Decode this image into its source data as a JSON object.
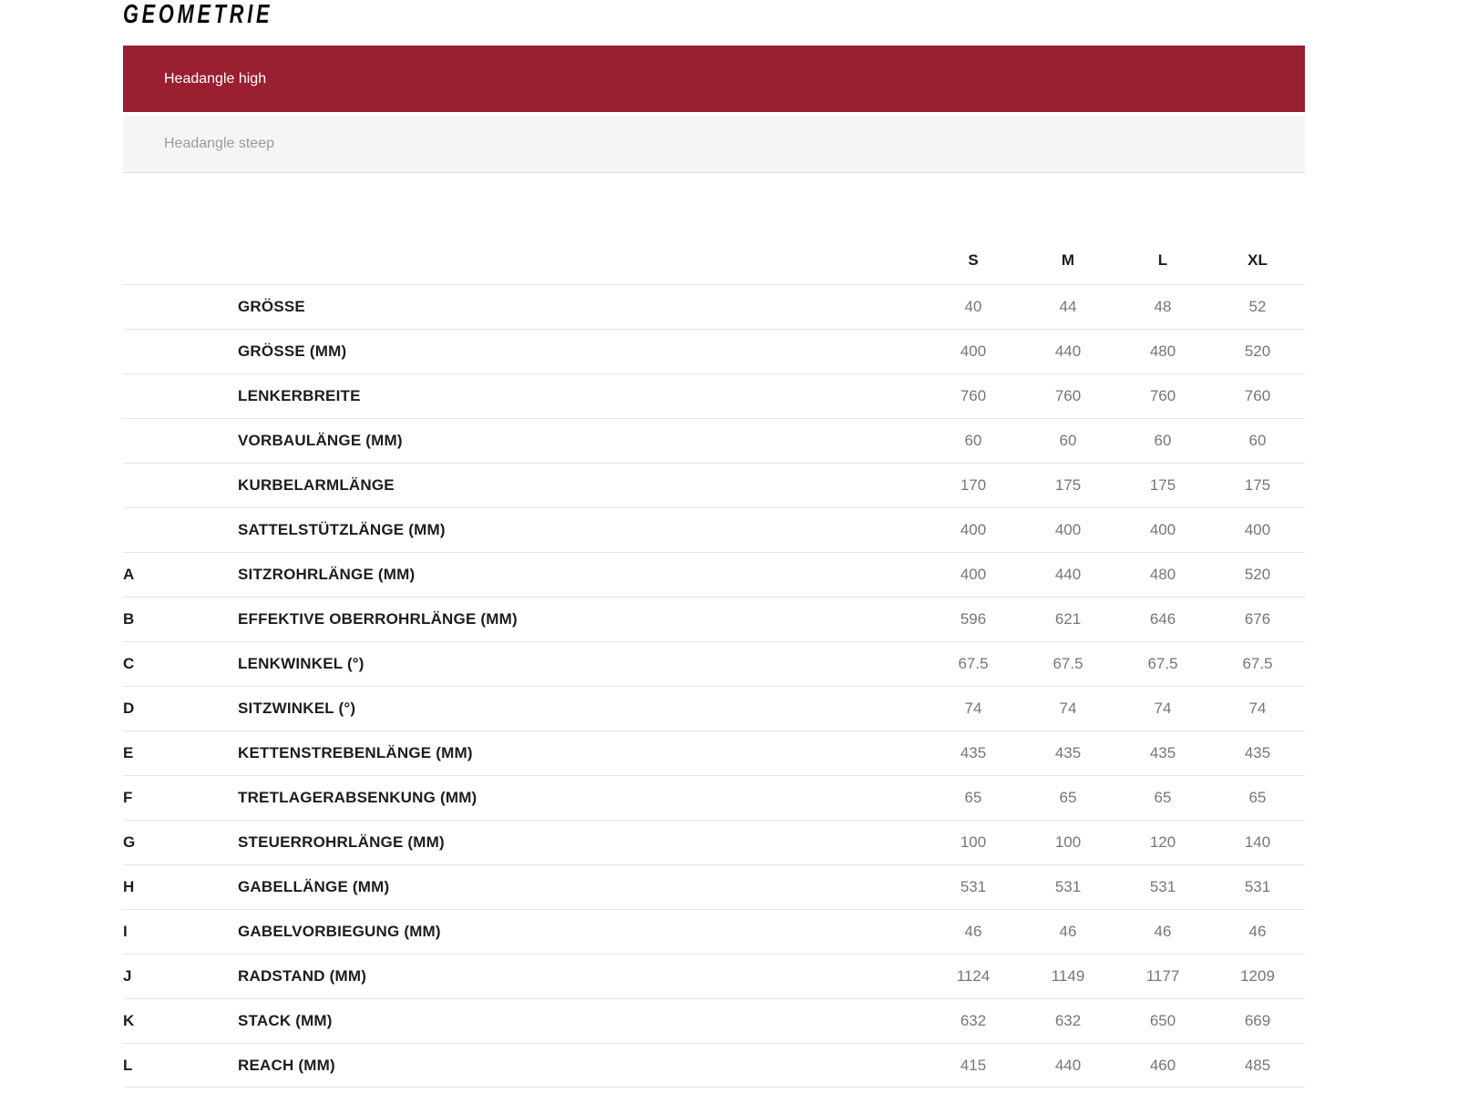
{
  "title": "GEOMETRIE",
  "tabs": [
    {
      "label": "Headangle high",
      "active": true
    },
    {
      "label": "Headangle steep",
      "active": false
    }
  ],
  "colors": {
    "accent": "#9A1F30",
    "inactive_tab_bg": "#F5F5F5",
    "active_tab_text": "#FFFFFF",
    "inactive_tab_text": "#9B9B9B",
    "row_border": "#E5E5E5",
    "label_text": "#1D1D1B",
    "value_text": "#767676"
  },
  "table": {
    "columns": [
      "S",
      "M",
      "L",
      "XL"
    ],
    "rows": [
      {
        "letter": "",
        "label": "GRÖSSE",
        "values": [
          "40",
          "44",
          "48",
          "52"
        ]
      },
      {
        "letter": "",
        "label": "GRÖSSE (MM)",
        "values": [
          "400",
          "440",
          "480",
          "520"
        ]
      },
      {
        "letter": "",
        "label": "LENKERBREITE",
        "values": [
          "760",
          "760",
          "760",
          "760"
        ]
      },
      {
        "letter": "",
        "label": "VORBAULÄNGE (MM)",
        "values": [
          "60",
          "60",
          "60",
          "60"
        ]
      },
      {
        "letter": "",
        "label": "KURBELARMLÄNGE",
        "values": [
          "170",
          "175",
          "175",
          "175"
        ]
      },
      {
        "letter": "",
        "label": "SATTELSTÜTZLÄNGE (MM)",
        "values": [
          "400",
          "400",
          "400",
          "400"
        ]
      },
      {
        "letter": "A",
        "label": "SITZROHRLÄNGE (MM)",
        "values": [
          "400",
          "440",
          "480",
          "520"
        ]
      },
      {
        "letter": "B",
        "label": "EFFEKTIVE OBERROHRLÄNGE (MM)",
        "values": [
          "596",
          "621",
          "646",
          "676"
        ]
      },
      {
        "letter": "C",
        "label": "LENKWINKEL (°)",
        "values": [
          "67.5",
          "67.5",
          "67.5",
          "67.5"
        ]
      },
      {
        "letter": "D",
        "label": "SITZWINKEL (°)",
        "values": [
          "74",
          "74",
          "74",
          "74"
        ]
      },
      {
        "letter": "E",
        "label": "KETTENSTREBENLÄNGE (MM)",
        "values": [
          "435",
          "435",
          "435",
          "435"
        ]
      },
      {
        "letter": "F",
        "label": "TRETLAGERABSENKUNG (MM)",
        "values": [
          "65",
          "65",
          "65",
          "65"
        ]
      },
      {
        "letter": "G",
        "label": "STEUERROHRLÄNGE (MM)",
        "values": [
          "100",
          "100",
          "120",
          "140"
        ]
      },
      {
        "letter": "H",
        "label": "GABELLÄNGE (MM)",
        "values": [
          "531",
          "531",
          "531",
          "531"
        ]
      },
      {
        "letter": "I",
        "label": "GABELVORBIEGUNG (MM)",
        "values": [
          "46",
          "46",
          "46",
          "46"
        ]
      },
      {
        "letter": "J",
        "label": "RADSTAND (MM)",
        "values": [
          "1124",
          "1149",
          "1177",
          "1209"
        ]
      },
      {
        "letter": "K",
        "label": "STACK (MM)",
        "values": [
          "632",
          "632",
          "650",
          "669"
        ]
      },
      {
        "letter": "L",
        "label": "REACH (MM)",
        "values": [
          "415",
          "440",
          "460",
          "485"
        ]
      }
    ]
  }
}
